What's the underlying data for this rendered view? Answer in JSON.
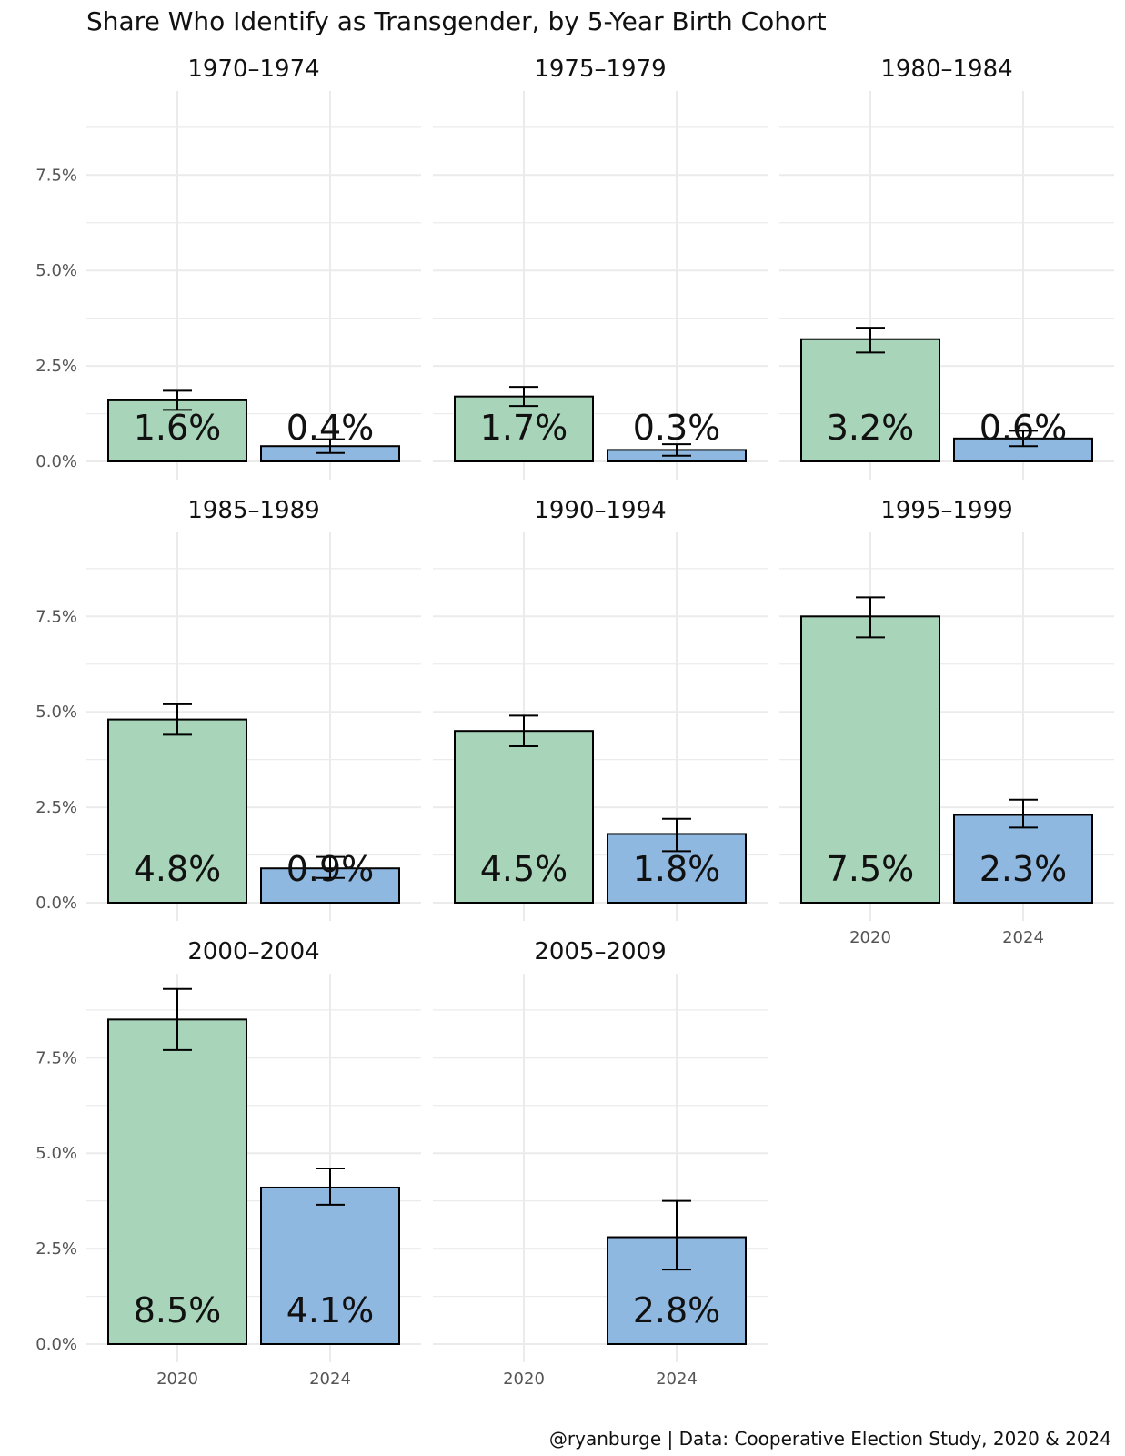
{
  "chart_data": {
    "type": "bar",
    "title": "Share Who Identify as Transgender, by 5-Year Birth Cohort",
    "caption": "@ryanburge | Data: Cooperative Election Study, 2020 & 2024",
    "xlabel": "",
    "ylabel": "",
    "categories": [
      "2020",
      "2024"
    ],
    "ylim": [
      0,
      9.7
    ],
    "yticks": [
      0,
      2.5,
      5.0,
      7.5
    ],
    "ytick_labels": [
      "0.0%",
      "2.5%",
      "5.0%",
      "7.5%"
    ],
    "grid": true,
    "colors": {
      "2020": "#a8d5b9",
      "2024": "#8fb8e1",
      "outline": "#000000",
      "grid": "#ebebeb"
    },
    "facets": [
      {
        "name": "1970–1974",
        "bars": [
          {
            "year": "2020",
            "value": 1.6,
            "label": "1.6%",
            "err_low": 1.35,
            "err_high": 1.85
          },
          {
            "year": "2024",
            "value": 0.4,
            "label": "0.4%",
            "err_low": 0.22,
            "err_high": 0.58
          }
        ]
      },
      {
        "name": "1975–1979",
        "bars": [
          {
            "year": "2020",
            "value": 1.7,
            "label": "1.7%",
            "err_low": 1.45,
            "err_high": 1.95
          },
          {
            "year": "2024",
            "value": 0.3,
            "label": "0.3%",
            "err_low": 0.15,
            "err_high": 0.45
          }
        ]
      },
      {
        "name": "1980–1984",
        "bars": [
          {
            "year": "2020",
            "value": 3.2,
            "label": "3.2%",
            "err_low": 2.85,
            "err_high": 3.5
          },
          {
            "year": "2024",
            "value": 0.6,
            "label": "0.6%",
            "err_low": 0.4,
            "err_high": 0.8
          }
        ]
      },
      {
        "name": "1985–1989",
        "bars": [
          {
            "year": "2020",
            "value": 4.8,
            "label": "4.8%",
            "err_low": 4.4,
            "err_high": 5.2
          },
          {
            "year": "2024",
            "value": 0.9,
            "label": "0.9%",
            "err_low": 0.65,
            "err_high": 1.2
          }
        ]
      },
      {
        "name": "1990–1994",
        "bars": [
          {
            "year": "2020",
            "value": 4.5,
            "label": "4.5%",
            "err_low": 4.1,
            "err_high": 4.9
          },
          {
            "year": "2024",
            "value": 1.8,
            "label": "1.8%",
            "err_low": 1.35,
            "err_high": 2.2
          }
        ]
      },
      {
        "name": "1995–1999",
        "bars": [
          {
            "year": "2020",
            "value": 7.5,
            "label": "7.5%",
            "err_low": 6.95,
            "err_high": 8.0
          },
          {
            "year": "2024",
            "value": 2.3,
            "label": "2.3%",
            "err_low": 1.97,
            "err_high": 2.7
          }
        ]
      },
      {
        "name": "2000–2004",
        "bars": [
          {
            "year": "2020",
            "value": 8.5,
            "label": "8.5%",
            "err_low": 7.7,
            "err_high": 9.3
          },
          {
            "year": "2024",
            "value": 4.1,
            "label": "4.1%",
            "err_low": 3.65,
            "err_high": 4.6
          }
        ]
      },
      {
        "name": "2005–2009",
        "bars": [
          {
            "year": "2024",
            "value": 2.8,
            "label": "2.8%",
            "err_low": 1.95,
            "err_high": 3.75
          }
        ]
      }
    ]
  }
}
